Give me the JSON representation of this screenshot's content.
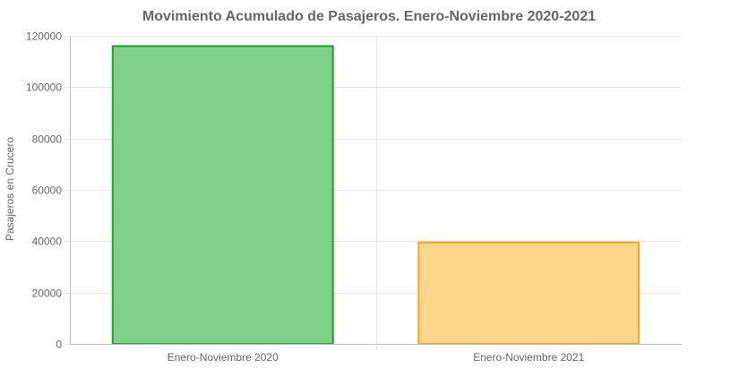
{
  "chart_data": {
    "type": "bar",
    "title": "Movimiento Acumulado de Pasajeros. Enero-Noviembre 2020-2021",
    "xlabel": "",
    "ylabel": "Pasajeros en Crucero",
    "categories": [
      "Enero-Noviembre 2020",
      "Enero-Noviembre 2021"
    ],
    "values": [
      116000,
      39500
    ],
    "ylim": [
      0,
      120000
    ],
    "yticks": [
      0,
      20000,
      40000,
      60000,
      80000,
      100000,
      120000
    ],
    "grid": true,
    "legend": "none",
    "bar_fill_colors": [
      "#80cf8b",
      "#fdd68b"
    ],
    "bar_border_colors": [
      "#1f9e30",
      "#f5a623"
    ]
  }
}
